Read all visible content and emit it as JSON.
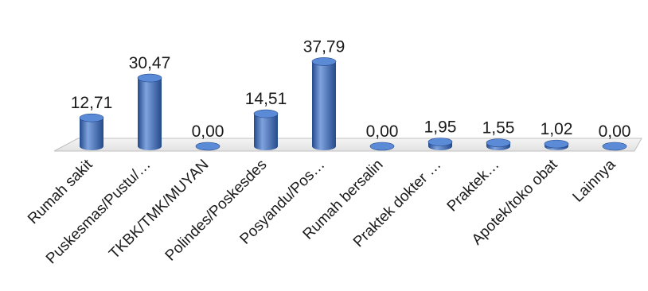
{
  "chart_data": {
    "type": "bar",
    "style": "3d-cylinder",
    "categories": [
      "Rumah sakit",
      "Puskesmas/Pustu/…",
      "TKBK/TMK/MUYAN",
      "Polindes/Poskesdes",
      "Posyandu/Pos…",
      "Rumah bersalin",
      "Praktek dokter …",
      "Praktek…",
      "Apotek/toko obat",
      "Lainnya"
    ],
    "values": [
      12.71,
      30.47,
      0.0,
      14.51,
      37.79,
      0.0,
      1.95,
      1.55,
      1.02,
      0.0
    ],
    "value_labels": [
      "12,71",
      "30,47",
      "0,00",
      "14,51",
      "37,79",
      "0,00",
      "1,95",
      "1,55",
      "1,02",
      "0,00"
    ],
    "title": "",
    "xlabel": "",
    "ylabel": "",
    "ylim": [
      0,
      40
    ],
    "grid": false,
    "legend": "none",
    "colors": {
      "bar_body": "#3f6fbf",
      "bar_light": "#7fa3de",
      "bar_dark": "#244a8c",
      "bar_top": "#5b8ad6",
      "floor_fill": "#ffffff",
      "floor_stroke": "#c0c0c0"
    }
  }
}
